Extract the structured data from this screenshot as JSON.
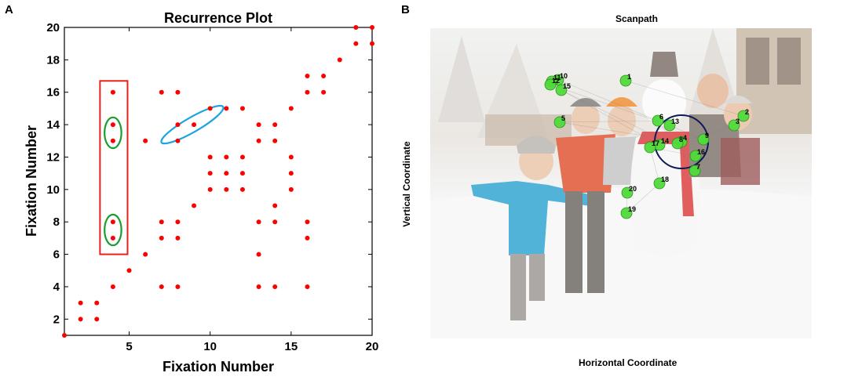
{
  "panels": {
    "a_label": "A",
    "b_label": "B"
  },
  "chart_data": [
    {
      "type": "scatter",
      "title": "Recurrence Plot",
      "xlabel": "Fixation Number",
      "ylabel": "Fixation Number",
      "xlim": [
        1,
        20
      ],
      "ylim": [
        1,
        20
      ],
      "xticks": [
        5,
        10,
        15,
        20
      ],
      "yticks": [
        2,
        4,
        6,
        8,
        10,
        12,
        14,
        16,
        18,
        20
      ],
      "grid": false,
      "color": "#ff0000",
      "points": [
        [
          1,
          1
        ],
        [
          2,
          2
        ],
        [
          2,
          3
        ],
        [
          3,
          2
        ],
        [
          3,
          3
        ],
        [
          4,
          4
        ],
        [
          4,
          7
        ],
        [
          4,
          8
        ],
        [
          4,
          13
        ],
        [
          4,
          14
        ],
        [
          4,
          16
        ],
        [
          5,
          5
        ],
        [
          6,
          6
        ],
        [
          6,
          13
        ],
        [
          7,
          4
        ],
        [
          7,
          7
        ],
        [
          7,
          8
        ],
        [
          7,
          16
        ],
        [
          8,
          4
        ],
        [
          8,
          7
        ],
        [
          8,
          8
        ],
        [
          8,
          13
        ],
        [
          8,
          14
        ],
        [
          8,
          16
        ],
        [
          9,
          9
        ],
        [
          9,
          14
        ],
        [
          10,
          10
        ],
        [
          10,
          11
        ],
        [
          10,
          12
        ],
        [
          10,
          15
        ],
        [
          11,
          10
        ],
        [
          11,
          11
        ],
        [
          11,
          12
        ],
        [
          11,
          15
        ],
        [
          12,
          10
        ],
        [
          12,
          11
        ],
        [
          12,
          12
        ],
        [
          12,
          15
        ],
        [
          13,
          4
        ],
        [
          13,
          6
        ],
        [
          13,
          8
        ],
        [
          13,
          13
        ],
        [
          13,
          14
        ],
        [
          14,
          4
        ],
        [
          14,
          8
        ],
        [
          14,
          9
        ],
        [
          14,
          13
        ],
        [
          14,
          14
        ],
        [
          15,
          10
        ],
        [
          15,
          11
        ],
        [
          15,
          12
        ],
        [
          15,
          15
        ],
        [
          16,
          4
        ],
        [
          16,
          7
        ],
        [
          16,
          8
        ],
        [
          16,
          16
        ],
        [
          16,
          17
        ],
        [
          17,
          16
        ],
        [
          17,
          17
        ],
        [
          18,
          18
        ],
        [
          19,
          19
        ],
        [
          19,
          20
        ],
        [
          20,
          19
        ],
        [
          20,
          20
        ]
      ],
      "annotations": {
        "rectangle": {
          "color": "#e8211d",
          "x": [
            3.2,
            4.9
          ],
          "y": [
            6.0,
            16.7
          ]
        },
        "ellipses_green": [
          {
            "cx": 4.0,
            "cy": 13.5,
            "rx": 0.52,
            "ry": 0.95,
            "color": "#1a9e2e"
          },
          {
            "cx": 4.0,
            "cy": 7.5,
            "rx": 0.52,
            "ry": 0.95,
            "color": "#1a9e2e"
          }
        ],
        "ellipse_blue": {
          "cx": 8.9,
          "cy": 14.0,
          "rx": 2.2,
          "ry": 0.45,
          "angle": -30,
          "color": "#1aa4e0"
        }
      }
    },
    {
      "type": "scatter",
      "title": "Scanpath",
      "xlabel": "Horizontal Coordinate",
      "ylabel": "Vertical Coordinate",
      "marker_color": "#4fdc3a",
      "fixations": [
        {
          "n": "1",
          "x": 249,
          "y": 67
        },
        {
          "n": "2",
          "x": 399,
          "y": 112
        },
        {
          "n": "3",
          "x": 387,
          "y": 124
        },
        {
          "n": "4",
          "x": 320,
          "y": 145
        },
        {
          "n": "5",
          "x": 165,
          "y": 120
        },
        {
          "n": "6",
          "x": 290,
          "y": 118
        },
        {
          "n": "7",
          "x": 337,
          "y": 182
        },
        {
          "n": "8",
          "x": 315,
          "y": 147
        },
        {
          "n": "9",
          "x": 348,
          "y": 142
        },
        {
          "n": "10",
          "x": 163,
          "y": 66
        },
        {
          "n": "11",
          "x": 155,
          "y": 68
        },
        {
          "n": "12",
          "x": 153,
          "y": 72
        },
        {
          "n": "13",
          "x": 305,
          "y": 124
        },
        {
          "n": "14",
          "x": 292,
          "y": 149
        },
        {
          "n": "15",
          "x": 167,
          "y": 79
        },
        {
          "n": "16",
          "x": 338,
          "y": 163
        },
        {
          "n": "17",
          "x": 280,
          "y": 152
        },
        {
          "n": "18",
          "x": 292,
          "y": 198
        },
        {
          "n": "19",
          "x": 250,
          "y": 236
        },
        {
          "n": "20",
          "x": 251,
          "y": 210
        }
      ],
      "roi_circle": {
        "cx": 320,
        "cy": 145,
        "r": 34,
        "color": "#0d1b55"
      },
      "path_segments": [
        [
          "1",
          "2"
        ],
        [
          "2",
          "3"
        ],
        [
          "3",
          "4"
        ],
        [
          "4",
          "5"
        ],
        [
          "5",
          "6"
        ],
        [
          "6",
          "7"
        ],
        [
          "7",
          "8"
        ],
        [
          "8",
          "9"
        ],
        [
          "9",
          "10"
        ],
        [
          "10",
          "11"
        ],
        [
          "11",
          "12"
        ],
        [
          "12",
          "13"
        ],
        [
          "13",
          "14"
        ],
        [
          "14",
          "15"
        ],
        [
          "15",
          "16"
        ],
        [
          "16",
          "17"
        ],
        [
          "17",
          "18"
        ],
        [
          "18",
          "19"
        ],
        [
          "19",
          "20"
        ]
      ]
    }
  ]
}
